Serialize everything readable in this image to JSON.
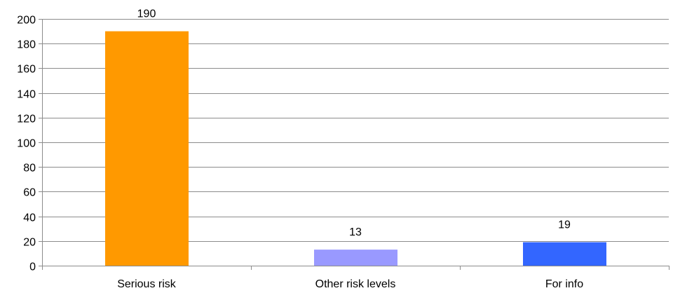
{
  "chart_data": {
    "type": "bar",
    "categories": [
      "Serious risk",
      "Other risk levels",
      "For info"
    ],
    "values": [
      190,
      13,
      19
    ],
    "value_labels": [
      "190",
      "13",
      "19"
    ],
    "colors": [
      "#ff9900",
      "#9999ff",
      "#3366ff"
    ],
    "ylim": [
      0,
      200
    ],
    "yticks": [
      0,
      20,
      40,
      60,
      80,
      100,
      120,
      140,
      160,
      180,
      200
    ],
    "grid": true,
    "legend": "none",
    "title": "",
    "xlabel": "",
    "ylabel": ""
  }
}
